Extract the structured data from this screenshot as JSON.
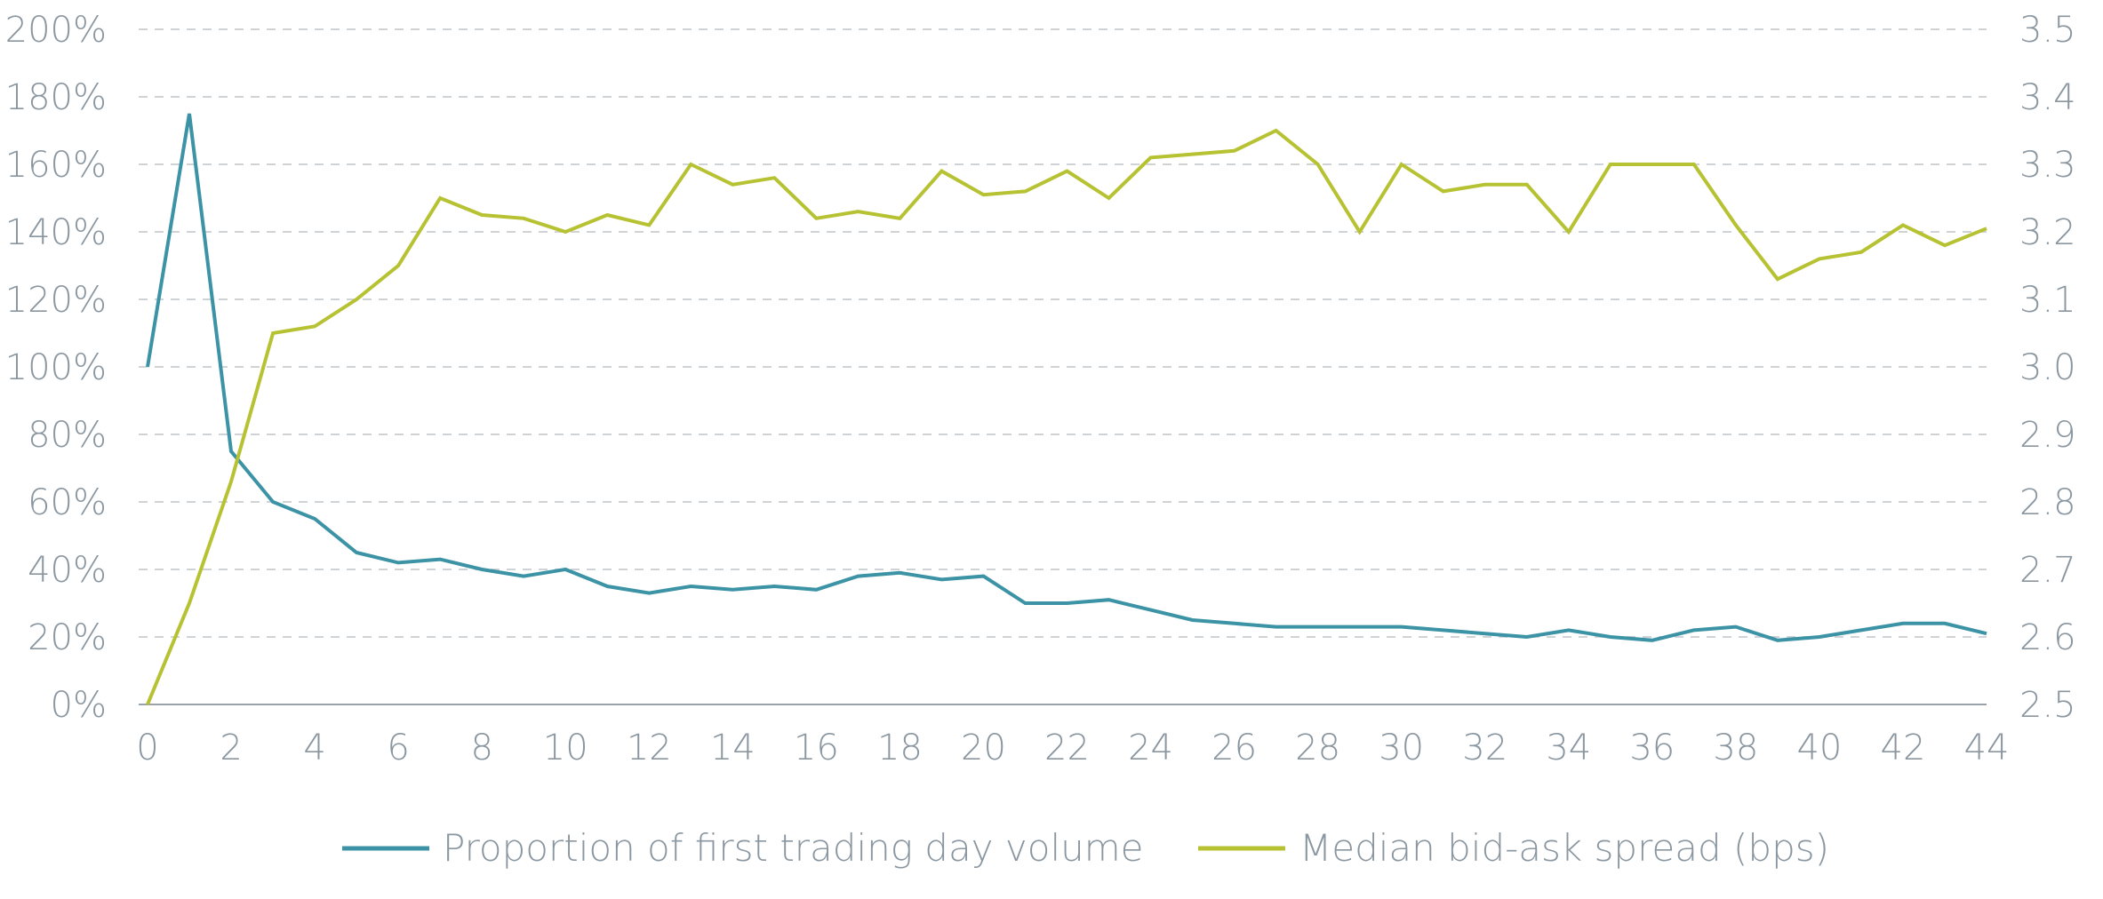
{
  "chart_data": {
    "type": "line",
    "title": "",
    "xlabel": "",
    "ylabel": "",
    "x": [
      0,
      1,
      2,
      3,
      4,
      5,
      6,
      7,
      8,
      9,
      10,
      11,
      12,
      13,
      14,
      15,
      16,
      17,
      18,
      19,
      20,
      21,
      22,
      23,
      24,
      25,
      26,
      27,
      28,
      29,
      30,
      31,
      32,
      33,
      34,
      35,
      36,
      37,
      38,
      39,
      40,
      41,
      42,
      43,
      44
    ],
    "x_ticks": [
      "0",
      "2",
      "4",
      "6",
      "8",
      "10",
      "12",
      "14",
      "16",
      "18",
      "20",
      "22",
      "24",
      "26",
      "28",
      "30",
      "32",
      "34",
      "36",
      "38",
      "40",
      "42",
      "44"
    ],
    "xlim": [
      0,
      44
    ],
    "y_left": {
      "ticks": [
        "0%",
        "20%",
        "40%",
        "60%",
        "80%",
        "100%",
        "120%",
        "140%",
        "160%",
        "180%",
        "200%"
      ],
      "lim": [
        0,
        200
      ],
      "unit": "%"
    },
    "y_right": {
      "ticks": [
        "2.5",
        "2.6",
        "2.7",
        "2.8",
        "2.9",
        "3.0",
        "3.1",
        "3.2",
        "3.3",
        "3.4",
        "3.5"
      ],
      "lim": [
        2.5,
        3.5
      ]
    },
    "grid": true,
    "legend_position": "bottom",
    "series": [
      {
        "name": "Proportion of first trading day volume",
        "axis": "left",
        "color": "#3b93a5",
        "values": [
          100,
          175,
          75,
          60,
          55,
          45,
          42,
          43,
          40,
          38,
          40,
          35,
          33,
          35,
          34,
          35,
          34,
          38,
          39,
          37,
          38,
          30,
          30,
          31,
          28,
          25,
          24,
          23,
          23,
          23,
          23,
          22,
          21,
          20,
          22,
          20,
          19,
          22,
          23,
          19,
          20,
          22,
          24,
          24,
          21
        ]
      },
      {
        "name": "Median bid-ask spread (bps)",
        "axis": "right",
        "color": "#b6c232",
        "values": [
          2.5,
          2.65,
          2.83,
          3.05,
          3.06,
          3.1,
          3.15,
          3.25,
          3.225,
          3.22,
          3.2,
          3.225,
          3.21,
          3.3,
          3.27,
          3.28,
          3.22,
          3.23,
          3.22,
          3.29,
          3.255,
          3.26,
          3.29,
          3.25,
          3.31,
          3.315,
          3.32,
          3.35,
          3.3,
          3.2,
          3.3,
          3.26,
          3.27,
          3.27,
          3.2,
          3.3,
          3.3,
          3.3,
          3.21,
          3.13,
          3.16,
          3.17,
          3.21,
          3.18,
          3.205
        ]
      }
    ]
  }
}
